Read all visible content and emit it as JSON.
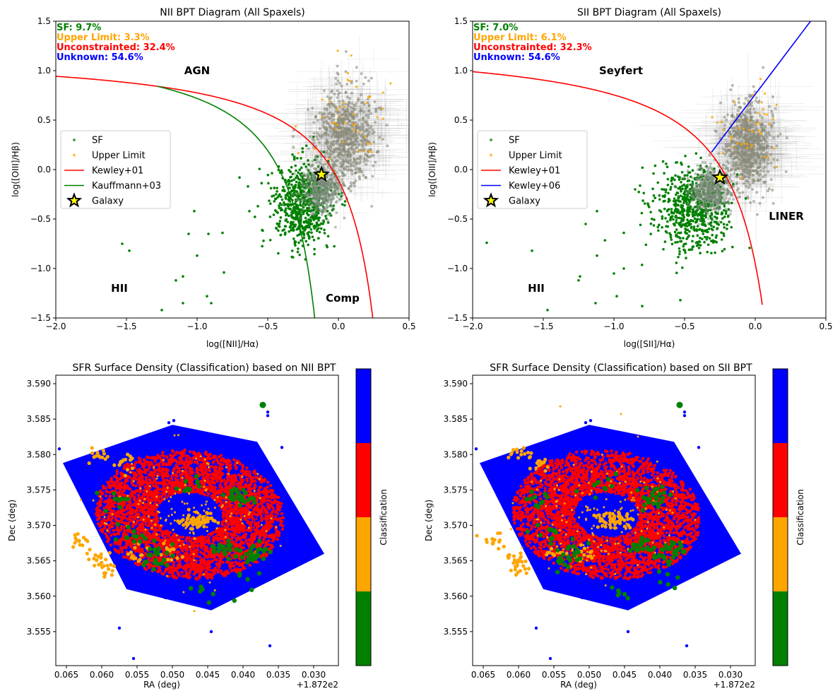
{
  "chart_data": [
    {
      "type": "scatter",
      "title": "NII BPT Diagram (All Spaxels)",
      "xlabel": "log([NII]/Hα)",
      "ylabel": "log([OIII]/Hβ)",
      "xlim": [
        -2.0,
        0.5
      ],
      "ylim": [
        -1.5,
        1.5
      ],
      "xticks": [
        -2.0,
        -1.5,
        -1.0,
        -0.5,
        0.0,
        0.5
      ],
      "yticks": [
        -1.5,
        -1.0,
        -0.5,
        0.0,
        0.5,
        1.0,
        1.5
      ],
      "xtick_labels": [
        "−2.0",
        "−1.5",
        "−1.0",
        "−0.5",
        "0.0",
        "0.5"
      ],
      "ytick_labels": [
        "−1.5",
        "−1.0",
        "−0.5",
        "0.0",
        "0.5",
        "1.0",
        "1.5"
      ],
      "stats": [
        {
          "text": "SF: 9.7%",
          "color": "#008000"
        },
        {
          "text": "Upper Limit: 3.3%",
          "color": "#ffa500"
        },
        {
          "text": "Unconstrainted: 32.4%",
          "color": "#ff0000"
        },
        {
          "text": "Unknown: 54.6%",
          "color": "#0000ff"
        }
      ],
      "region_labels": [
        {
          "text": "AGN",
          "x": -1.0,
          "y": 1.0
        },
        {
          "text": "HII",
          "x": -1.55,
          "y": -1.2
        },
        {
          "text": "Comp",
          "x": 0.03,
          "y": -1.3
        }
      ],
      "legend": [
        "SF",
        "Upper Limit",
        "Kewley+01",
        "Kauffmann+03",
        "Galaxy"
      ],
      "legend_placement": "center-left",
      "kewley_line": "0.61/(x-0.47)+1.19",
      "second_line": "0.61/(x-0.05)+1.3",
      "sf_cluster": {
        "x_center": -0.25,
        "y_center": -0.35,
        "x_sd": 0.1,
        "y_sd": 0.2
      },
      "sf_outliers": [
        [
          -1.53,
          -0.75
        ],
        [
          -1.48,
          -0.82
        ],
        [
          -1.25,
          -1.42
        ],
        [
          -1.15,
          -1.12
        ],
        [
          -1.1,
          -1.08
        ],
        [
          -1.1,
          -1.35
        ],
        [
          -1.02,
          -0.42
        ],
        [
          -1.0,
          -0.87
        ],
        [
          -0.93,
          -1.28
        ],
        [
          -0.9,
          -1.35
        ],
        [
          -0.82,
          -0.64
        ],
        [
          -0.81,
          -1.04
        ],
        [
          -0.7,
          -0.08
        ],
        [
          -0.64,
          -0.17
        ],
        [
          -0.63,
          -0.42
        ],
        [
          -0.57,
          -0.37
        ],
        [
          -0.53,
          -0.72
        ],
        [
          -0.92,
          -0.65
        ],
        [
          -1.06,
          -0.65
        ]
      ],
      "agn_cluster": {
        "x_center": 0.05,
        "y_center": 0.35,
        "x_sd": 0.15,
        "y_sd": 0.25
      },
      "galaxy_point": [
        -0.12,
        -0.05
      ]
    },
    {
      "type": "scatter",
      "title": "SII BPT Diagram (All Spaxels)",
      "xlabel": "log([SII]/Hα)",
      "ylabel": "log([OIII]/Hβ)",
      "xlim": [
        -2.0,
        0.5
      ],
      "ylim": [
        -1.5,
        1.5
      ],
      "xticks": [
        -2.0,
        -1.5,
        -1.0,
        -0.5,
        0.0,
        0.5
      ],
      "yticks": [
        -1.5,
        -1.0,
        -0.5,
        0.0,
        0.5,
        1.0,
        1.5
      ],
      "xtick_labels": [
        "−2.0",
        "−1.5",
        "−1.0",
        "−0.5",
        "0.0",
        "0.5"
      ],
      "ytick_labels": [
        "−1.5",
        "−1.0",
        "−0.5",
        "0.0",
        "0.5",
        "1.0",
        "1.5"
      ],
      "stats": [
        {
          "text": "SF: 7.0%",
          "color": "#008000"
        },
        {
          "text": "Upper Limit: 6.1%",
          "color": "#ffa500"
        },
        {
          "text": "Unconstrainted: 32.3%",
          "color": "#ff0000"
        },
        {
          "text": "Unknown: 54.6%",
          "color": "#0000ff"
        }
      ],
      "region_labels": [
        {
          "text": "Seyfert",
          "x": -0.95,
          "y": 1.0
        },
        {
          "text": "LINER",
          "x": 0.22,
          "y": -0.47
        },
        {
          "text": "HII",
          "x": -1.55,
          "y": -1.2
        }
      ],
      "legend": [
        "SF",
        "Upper Limit",
        "Kewley+01",
        "Kewley+06",
        "Galaxy"
      ],
      "legend_placement": "center-left",
      "kewley_line": "0.72/(x-0.32)+1.30",
      "second_line": "1.89x+0.76",
      "sf_cluster": {
        "x_center": -0.45,
        "y_center": -0.4,
        "x_sd": 0.13,
        "y_sd": 0.22
      },
      "sf_outliers": [
        [
          -1.9,
          -0.74
        ],
        [
          -1.58,
          -0.82
        ],
        [
          -1.47,
          -1.42
        ],
        [
          -1.25,
          -1.12
        ],
        [
          -1.24,
          -1.08
        ],
        [
          -1.13,
          -1.35
        ],
        [
          -1.12,
          -0.42
        ],
        [
          -1.12,
          -0.87
        ],
        [
          -0.98,
          -1.28
        ],
        [
          -1.0,
          -1.05
        ],
        [
          -0.93,
          -0.64
        ],
        [
          -0.93,
          -1.0
        ],
        [
          -0.8,
          -1.38
        ],
        [
          -0.72,
          -0.04
        ],
        [
          -0.85,
          -0.2
        ],
        [
          -0.53,
          -1.32
        ],
        [
          -1.2,
          -0.55
        ]
      ],
      "agn_cluster": {
        "x_center": -0.05,
        "y_center": 0.22,
        "x_sd": 0.12,
        "y_sd": 0.22
      },
      "galaxy_point": [
        -0.25,
        -0.08
      ]
    },
    {
      "type": "heatmap",
      "title": "SFR Surface Density (Classification) based on NII BPT",
      "xlabel": "RA (deg)",
      "ylabel": "Dec (deg)",
      "xlim": [
        0.0665,
        0.0265
      ],
      "ylim": [
        3.5502,
        3.5912
      ],
      "xticks": [
        0.065,
        0.06,
        0.055,
        0.05,
        0.045,
        0.04,
        0.035,
        0.03
      ],
      "xtick_labels": [
        "0.065",
        "0.060",
        "0.055",
        "0.050",
        "0.045",
        "0.040",
        "0.035",
        "0.030"
      ],
      "yticks": [
        3.555,
        3.56,
        3.565,
        3.57,
        3.575,
        3.58,
        3.585,
        3.59
      ],
      "ytick_labels": [
        "3.555",
        "3.560",
        "3.565",
        "3.570",
        "3.575",
        "3.580",
        "3.585",
        "3.590"
      ],
      "offset_text": "+1.872e2",
      "colorbar_label": "Classification",
      "colorbar_colors": [
        "#008000",
        "#ffa500",
        "#ff0000",
        "#0000ff"
      ]
    },
    {
      "type": "heatmap",
      "title": "SFR Surface Density (Classification) based on SII BPT",
      "xlabel": "RA (deg)",
      "ylabel": "Dec (deg)",
      "xlim": [
        0.0665,
        0.0265
      ],
      "ylim": [
        3.5502,
        3.5912
      ],
      "xticks": [
        0.065,
        0.06,
        0.055,
        0.05,
        0.045,
        0.04,
        0.035,
        0.03
      ],
      "xtick_labels": [
        "0.065",
        "0.060",
        "0.055",
        "0.050",
        "0.045",
        "0.040",
        "0.035",
        "0.030"
      ],
      "yticks": [
        3.555,
        3.56,
        3.565,
        3.57,
        3.575,
        3.58,
        3.585,
        3.59
      ],
      "ytick_labels": [
        "3.555",
        "3.560",
        "3.565",
        "3.570",
        "3.575",
        "3.580",
        "3.585",
        "3.590"
      ],
      "offset_text": "+1.872e2",
      "colorbar_label": "Classification",
      "colorbar_colors": [
        "#008000",
        "#ffa500",
        "#ff0000",
        "#0000ff"
      ]
    }
  ]
}
